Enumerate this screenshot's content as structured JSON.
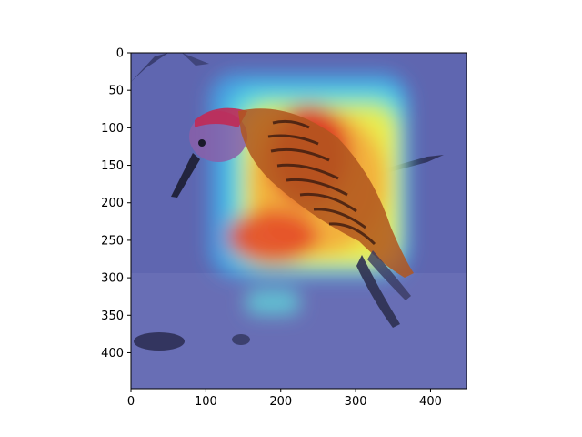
{
  "chart_data": {
    "type": "heatmap",
    "title": "",
    "xlabel": "",
    "ylabel": "",
    "xlim": [
      0,
      448
    ],
    "ylim": [
      448,
      0
    ],
    "xticks": [
      0,
      100,
      200,
      300,
      400
    ],
    "yticks": [
      0,
      50,
      100,
      150,
      200,
      250,
      300,
      350,
      400
    ],
    "grid": false,
    "colormap": "jet",
    "image_subject": "woodpecker-on-snow",
    "colors": {
      "axis": "#000000",
      "snow_base": "#5f66b0",
      "heat_low": "#3b4fc8",
      "heat_mid": "#f2ec4a",
      "heat_high": "#d82020"
    }
  }
}
